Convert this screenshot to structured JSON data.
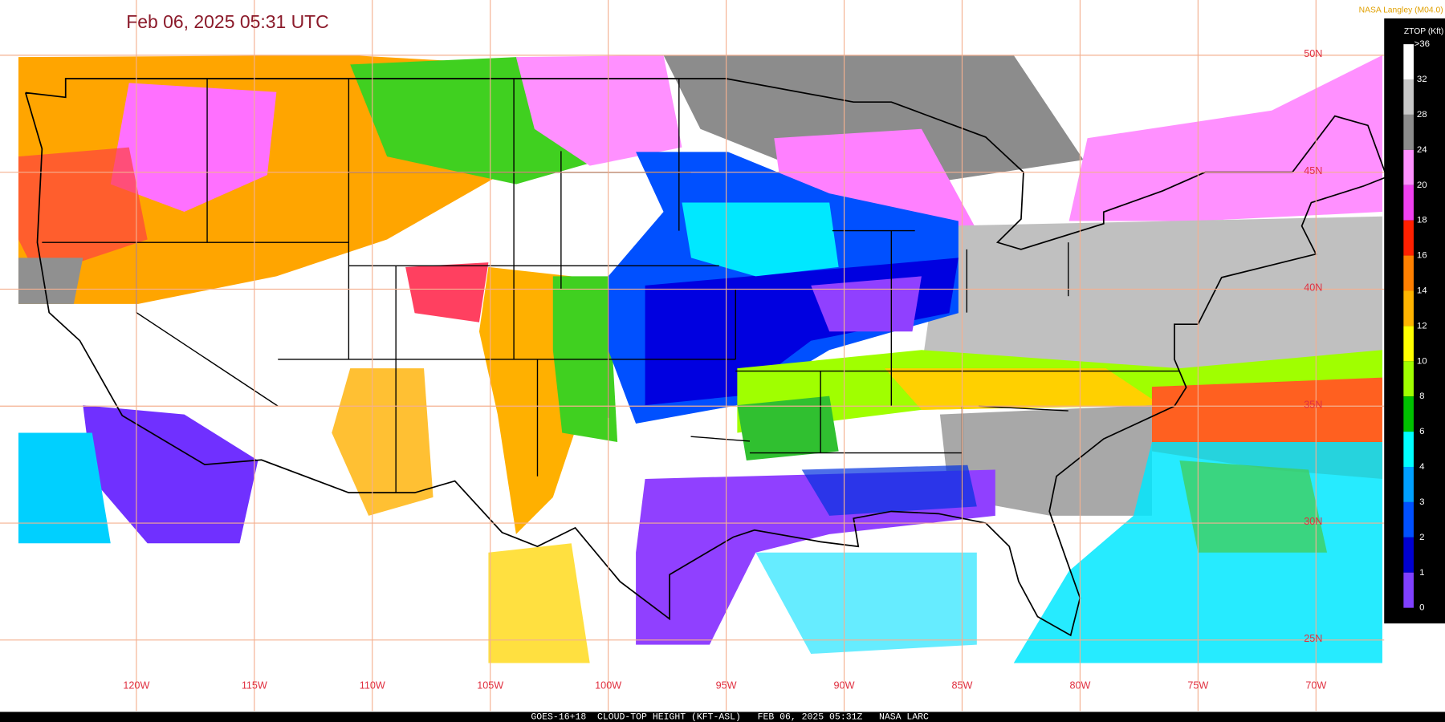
{
  "header": {
    "title": "Feb 06, 2025 05:31 UTC",
    "credit": "NASA Langley (M04.0)"
  },
  "legend": {
    "title": "ZTOP (Kft)",
    "labels": [
      ">36",
      "32",
      "28",
      "24",
      "20",
      "18",
      "16",
      "14",
      "12",
      "10",
      "8",
      "6",
      "4",
      "3",
      "2",
      "1",
      "0"
    ],
    "colors": [
      "#ffffff",
      "#c8c8c8",
      "#8c8c8c",
      "#ff90ff",
      "#f040f0",
      "#ff2000",
      "#ff8000",
      "#ffb400",
      "#ffff00",
      "#a0ff00",
      "#00c000",
      "#00ffff",
      "#00a0ff",
      "#0050ff",
      "#0000d0",
      "#8040ff"
    ]
  },
  "graticule": {
    "lon_labels": [
      "120W",
      "115W",
      "110W",
      "105W",
      "100W",
      "95W",
      "90W",
      "85W",
      "80W",
      "75W",
      "70W"
    ],
    "lat_labels": [
      "50N",
      "45N",
      "40N",
      "35N",
      "30N",
      "25N"
    ]
  },
  "footer": {
    "caption": "GOES-16+18  CLOUD-TOP HEIGHT (KFT-ASL)   FEB 06, 2025 05:31Z   NASA LARC"
  }
}
